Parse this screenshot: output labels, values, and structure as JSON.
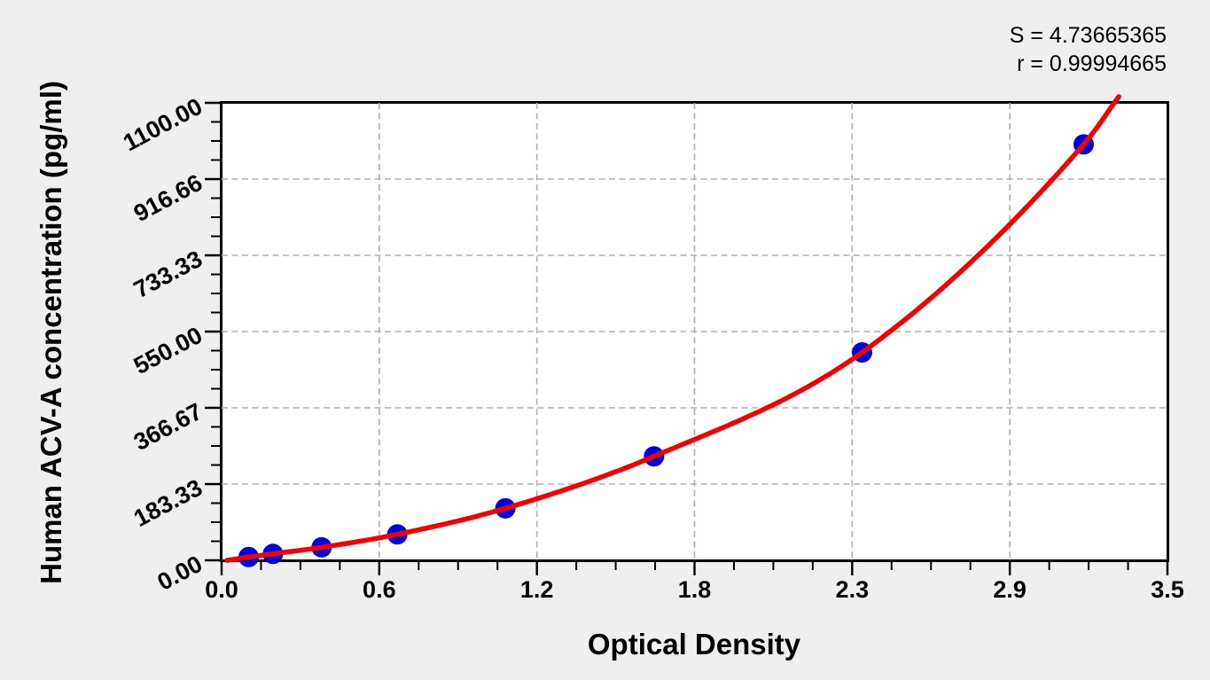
{
  "stats": {
    "s_label": "S = 4.73665365",
    "r_label": "r = 0.99994665"
  },
  "chart_data": {
    "type": "scatter",
    "title": "",
    "xlabel": "Optical Density",
    "ylabel": "Human ACV-A concentration (pg/ml)",
    "xlim": [
      0,
      3.5
    ],
    "ylim": [
      0,
      1100
    ],
    "x_tick_labels": [
      "0.0",
      "0.6",
      "1.2",
      "1.8",
      "2.3",
      "2.9",
      "3.5"
    ],
    "y_tick_labels": [
      "0.00",
      "183.33",
      "366.67",
      "550.00",
      "733.33",
      "916.66",
      "1100.00"
    ],
    "minor_ticks_per_major": 4,
    "grid": "dashed gray gridlines at interior major ticks, both axes",
    "legend": "none",
    "series": [
      {
        "name": "standard data points",
        "type": "scatter",
        "x": [
          0.1,
          0.19,
          0.37,
          0.65,
          1.05,
          1.6,
          2.37,
          3.19
        ],
        "y": [
          7.8,
          15.6,
          31.2,
          62.5,
          125,
          250,
          500,
          1000
        ]
      },
      {
        "name": "fitted standard curve",
        "type": "line",
        "x_start": 0.02,
        "y_start": 0,
        "x_end": 3.32,
        "y_end": 1115
      }
    ],
    "colors": {
      "point_fill": "#0000dd",
      "curve_stroke": "#f40000",
      "grid_stroke": "#b0b0b0",
      "axis_stroke": "#000000",
      "plot_background": "#ffffff",
      "page_background": "#efefef",
      "text": "#000000"
    }
  }
}
